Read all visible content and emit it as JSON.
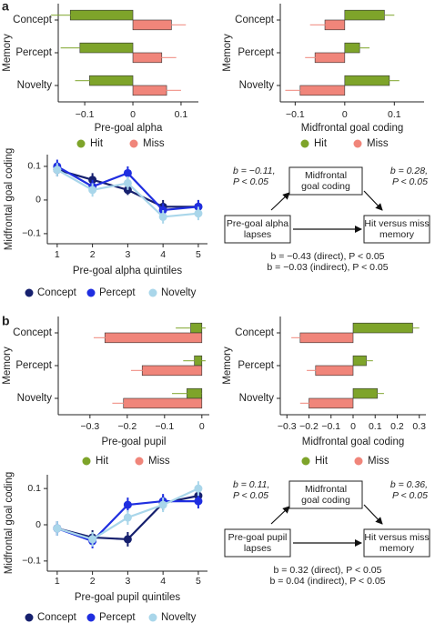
{
  "panel_labels": [
    "a",
    "b"
  ],
  "chart_data": [
    {
      "type": "bar",
      "orientation": "horizontal",
      "y_label": "Memory",
      "x_label": "Pre-goal alpha",
      "categories": [
        "Concept",
        "Percept",
        "Novelty"
      ],
      "series": [
        {
          "name": "Hit",
          "color": "#7ea42a",
          "values": [
            -0.13,
            -0.11,
            -0.09
          ],
          "errors": [
            0.04,
            0.04,
            0.03
          ]
        },
        {
          "name": "Miss",
          "color": "#f0857a",
          "values": [
            0.08,
            0.06,
            0.07
          ],
          "errors": [
            0.03,
            0.03,
            0.03
          ]
        }
      ],
      "xlim": [
        -0.155,
        0.136
      ],
      "xticks": [
        {
          "value": -0.1,
          "label": "−0.1"
        },
        0,
        0.1
      ]
    },
    {
      "type": "bar",
      "orientation": "horizontal",
      "y_label": "Memory",
      "x_label": "Midfrontal goal coding",
      "categories": [
        "Concept",
        "Percept",
        "Novelty"
      ],
      "series": [
        {
          "name": "Hit",
          "color": "#7ea42a",
          "values": [
            0.08,
            0.03,
            0.09
          ],
          "errors": [
            0.02,
            0.02,
            0.02
          ]
        },
        {
          "name": "Miss",
          "color": "#f0857a",
          "values": [
            -0.04,
            -0.06,
            -0.09
          ],
          "errors": [
            0.03,
            0.02,
            0.03
          ]
        }
      ],
      "xlim": [
        -0.13,
        0.16
      ],
      "xticks": [
        {
          "value": -0.1,
          "label": "−0.1"
        },
        0,
        0.1
      ]
    },
    {
      "type": "line",
      "y_label": "Midfrontal goal coding",
      "x_label": "Pre-goal alpha quintiles",
      "x": [
        1,
        2,
        3,
        4,
        5
      ],
      "series": [
        {
          "name": "Concept",
          "color": "#16206e",
          "values": [
            0.09,
            0.06,
            0.03,
            -0.02,
            -0.02
          ],
          "errors": [
            0.02,
            0.02,
            0.015,
            0.02,
            0.02
          ]
        },
        {
          "name": "Percept",
          "color": "#1f2ee0",
          "values": [
            0.1,
            0.04,
            0.08,
            -0.03,
            -0.02
          ],
          "errors": [
            0.02,
            0.02,
            0.02,
            0.02,
            0.02
          ]
        },
        {
          "name": "Novelty",
          "color": "#a9d6ea",
          "values": [
            0.09,
            0.03,
            0.05,
            -0.05,
            -0.04
          ],
          "errors": [
            0.02,
            0.02,
            0.02,
            0.02,
            0.02
          ]
        }
      ],
      "xlim": [
        0.72,
        5.26
      ],
      "xticks": [
        1,
        2,
        3,
        4,
        5
      ],
      "ylim": [
        -0.13,
        0.135
      ],
      "yticks": [
        {
          "value": -0.1,
          "label": "−0.1"
        },
        0,
        0.1
      ]
    },
    {
      "type": "bar",
      "orientation": "horizontal",
      "y_label": "Memory",
      "x_label": "Pre-goal pupil",
      "categories": [
        "Concept",
        "Percept",
        "Novelty"
      ],
      "series": [
        {
          "name": "Hit",
          "color": "#7ea42a",
          "values": [
            -0.03,
            -0.02,
            -0.04
          ],
          "errors": [
            0.04,
            0.03,
            0.04
          ]
        },
        {
          "name": "Miss",
          "color": "#f0857a",
          "values": [
            -0.26,
            -0.16,
            -0.21
          ],
          "errors": [
            0.03,
            0.03,
            0.03
          ]
        }
      ],
      "xlim": [
        -0.385,
        0.02
      ],
      "xticks": [
        {
          "value": -0.3,
          "label": "−0.3"
        },
        {
          "value": -0.2,
          "label": "−0.2"
        },
        {
          "value": -0.1,
          "label": "−0.1"
        },
        0
      ]
    },
    {
      "type": "bar",
      "orientation": "horizontal",
      "y_label": "Memory",
      "x_label": "Midfrontal goal coding",
      "categories": [
        "Concept",
        "Percept",
        "Novelty"
      ],
      "series": [
        {
          "name": "Hit",
          "color": "#7ea42a",
          "values": [
            0.27,
            0.06,
            0.11
          ],
          "errors": [
            0.03,
            0.03,
            0.03
          ]
        },
        {
          "name": "Miss",
          "color": "#f0857a",
          "values": [
            -0.24,
            -0.17,
            -0.2
          ],
          "errors": [
            0.04,
            0.04,
            0.04
          ]
        }
      ],
      "xlim": [
        -0.33,
        0.33
      ],
      "xticks": [
        {
          "value": -0.3,
          "label": "−0.3"
        },
        {
          "value": -0.2,
          "label": "−0.2"
        },
        {
          "value": -0.1,
          "label": "−0.1"
        },
        0,
        0.1,
        0.2,
        0.3
      ]
    },
    {
      "type": "line",
      "y_label": "Midfrontal goal coding",
      "x_label": "Pre-goal pupil quintiles",
      "x": [
        1,
        2,
        3,
        4,
        5
      ],
      "series": [
        {
          "name": "Concept",
          "color": "#16206e",
          "values": [
            -0.01,
            -0.035,
            -0.04,
            0.06,
            0.08
          ],
          "errors": [
            0.02,
            0.02,
            0.02,
            0.02,
            0.02
          ]
        },
        {
          "name": "Percept",
          "color": "#1f2ee0",
          "values": [
            -0.01,
            -0.045,
            0.055,
            0.065,
            0.065
          ],
          "errors": [
            0.02,
            0.02,
            0.02,
            0.02,
            0.02
          ]
        },
        {
          "name": "Novelty",
          "color": "#a9d6ea",
          "values": [
            -0.01,
            -0.04,
            0.02,
            0.055,
            0.1
          ],
          "errors": [
            0.02,
            0.02,
            0.02,
            0.02,
            0.02
          ]
        }
      ],
      "xlim": [
        0.72,
        5.26
      ],
      "xticks": [
        1,
        2,
        3,
        4,
        5
      ],
      "ylim": [
        -0.128,
        0.138
      ],
      "yticks": [
        {
          "value": -0.1,
          "label": "−0.1"
        },
        0,
        0.1
      ]
    }
  ],
  "diagrams": [
    {
      "nodes": [
        [
          "Midfrontal",
          "goal coding"
        ],
        [
          "Pre-goal alpha",
          "lapses"
        ],
        [
          "Hit versus miss",
          "memory"
        ]
      ],
      "edge_labels": [
        [
          "b = −0.11,",
          "P < 0.05"
        ],
        [
          "b = 0.28,",
          "P < 0.05"
        ]
      ],
      "notes": [
        "b = −0.43 (direct), P < 0.05",
        "b = −0.03 (indirect), P < 0.05"
      ]
    },
    {
      "nodes": [
        [
          "Midfrontal",
          "goal coding"
        ],
        [
          "Pre-goal pupil",
          "lapses"
        ],
        [
          "Hit versus miss",
          "memory"
        ]
      ],
      "edge_labels": [
        [
          "b = 0.11,",
          "P < 0.05"
        ],
        [
          "b = 0.36,",
          "P < 0.05"
        ]
      ],
      "notes": [
        "b = 0.32 (direct), P < 0.05",
        "b = 0.04 (indirect), P < 0.05"
      ]
    }
  ]
}
